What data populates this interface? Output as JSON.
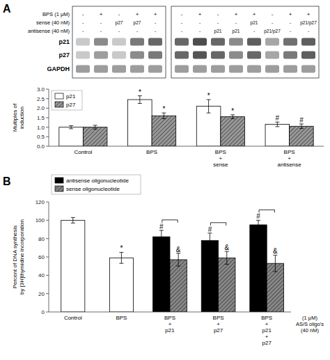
{
  "chart_data": [
    {
      "type": "heatmap",
      "title": "A",
      "conditions": [
        {
          "name": "BPS (1 μM)",
          "values": [
            "-",
            "+",
            "-",
            "+",
            "+",
            "-",
            "+",
            "-",
            "+",
            "+",
            "-",
            "+",
            "+"
          ]
        },
        {
          "name": "sense (40 nM)",
          "values": [
            "-",
            "-",
            "p27",
            "p27",
            "-",
            "-",
            "-",
            "-",
            "-",
            "p21",
            "-",
            "-",
            "p21/p27"
          ]
        },
        {
          "name": "antisense (40 nM)",
          "values": [
            "-",
            "-",
            "-",
            "-",
            "-",
            "-",
            "-",
            "p21",
            "p21",
            "-",
            "p21/p27",
            "-",
            "-"
          ]
        }
      ],
      "rows": [
        "p21",
        "p27",
        "GAPDH"
      ],
      "cells": [
        [
          0.3,
          0.65,
          0.3,
          0.75,
          0.85,
          0.85,
          1.0,
          0.85,
          0.65,
          0.9,
          0.5,
          0.8,
          0.9
        ],
        [
          0.3,
          0.55,
          0.3,
          0.65,
          0.75,
          0.85,
          0.95,
          0.85,
          0.65,
          0.85,
          0.5,
          0.75,
          0.9
        ],
        [
          0.55,
          0.55,
          0.55,
          0.55,
          0.55,
          0.55,
          0.55,
          0.55,
          0.55,
          0.55,
          0.55,
          0.55,
          0.55
        ]
      ]
    },
    {
      "type": "bar",
      "categories": [
        "Control",
        "BPS",
        "BPS\n+\nsense",
        "BPS\n+\nantisense"
      ],
      "series": [
        {
          "name": "p21",
          "color": "white",
          "values": [
            1.0,
            2.45,
            2.1,
            1.15
          ],
          "errors": [
            0.08,
            0.2,
            0.35,
            0.12
          ],
          "annotations": [
            null,
            "*",
            "*",
            "#"
          ]
        },
        {
          "name": "p27",
          "color": "#999999",
          "values": [
            1.0,
            1.6,
            1.55,
            1.05
          ],
          "errors": [
            0.1,
            0.15,
            0.1,
            0.12
          ],
          "annotations": [
            null,
            "*",
            "*",
            "#"
          ]
        }
      ],
      "ylabel": "Multiples of\ninduction",
      "ylim": [
        0,
        3.0
      ],
      "yticks": [
        {
          "value": 0,
          "label": "0.0"
        },
        0.5,
        {
          "value": 1,
          "label": "1.0"
        },
        1.5,
        {
          "value": 2,
          "label": "2.0"
        },
        2.5,
        {
          "value": 3,
          "label": "3.0"
        }
      ],
      "legend": "upper left"
    },
    {
      "type": "bar",
      "title": "B",
      "categories": [
        "Control",
        "BPS",
        "BPS\n+\np21",
        "BPS\n+\np27",
        "BPS\n+\np21\n+\np27"
      ],
      "series": [
        {
          "name": "antisense oligonucleotide",
          "color": "black",
          "colors": [
            "white",
            "white",
            "black",
            "black",
            "black"
          ],
          "values": [
            100,
            59,
            82,
            78,
            95
          ],
          "errors": [
            3,
            6,
            7,
            8,
            5
          ],
          "annotations": [
            null,
            "*",
            "#",
            "#",
            "#"
          ]
        },
        {
          "name": "sense oligonucleotide",
          "color": "#888888",
          "values": [
            null,
            null,
            57,
            59,
            53
          ],
          "errors": [
            null,
            null,
            7,
            7,
            9
          ],
          "annotations": [
            null,
            null,
            "&",
            "&",
            "&"
          ]
        }
      ],
      "ylabel": "Percent of DNA synthesis\nby [3H]thymidine incorporation",
      "xlabel": "(1 μM)\nAS/S oligo's\n(40 nM)",
      "ylim": [
        0,
        120
      ],
      "yticks": [
        0,
        20,
        40,
        60,
        80,
        100,
        120
      ],
      "legend": "upper left"
    }
  ]
}
